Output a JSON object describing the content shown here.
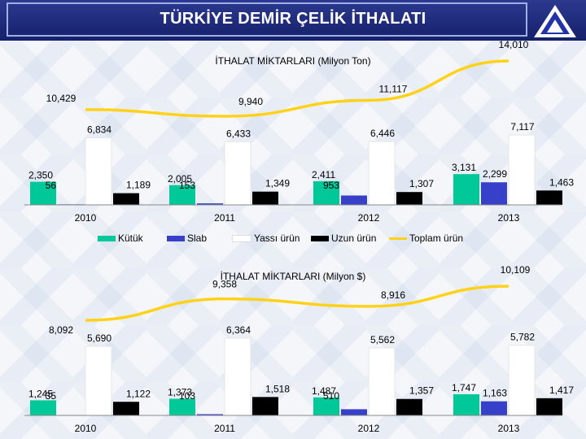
{
  "header": {
    "title": "TÜRKİYE DEMİR ÇELİK İTHALATI",
    "logo_icon": "triangle-a-logo-icon"
  },
  "colors": {
    "Kütük": "#00c898",
    "Slab": "#3640c8",
    "Yassı ürün": "#ffffff",
    "Uzun ürün": "#000000",
    "Toplam ürün": "#ffd21a"
  },
  "legend": [
    "Kütük",
    "Slab",
    "Yassı ürün",
    "Uzun ürün",
    "Toplam ürün"
  ],
  "chart_data": [
    {
      "type": "bar",
      "title": "İTHALAT MİKTARLARI (Milyon Ton)",
      "categories": [
        "2010",
        "2011",
        "2012",
        "2013"
      ],
      "series": [
        {
          "name": "Kütük",
          "values": [
            2350,
            2005,
            2411,
            3131
          ],
          "labels": [
            "2,350",
            "2,005",
            "2,411",
            "3,131"
          ]
        },
        {
          "name": "Slab",
          "values": [
            56,
            153,
            953,
            2299
          ],
          "labels": [
            "56",
            "153",
            "953",
            "2,299"
          ]
        },
        {
          "name": "Yassı ürün",
          "values": [
            6834,
            6433,
            6446,
            7117
          ],
          "labels": [
            "6,834",
            "6,433",
            "6,446",
            "7,117"
          ]
        },
        {
          "name": "Uzun ürün",
          "values": [
            1189,
            1349,
            1307,
            1463
          ],
          "labels": [
            "1,189",
            "1,349",
            "1,307",
            "1,463"
          ]
        }
      ],
      "line": {
        "name": "Toplam ürün",
        "values": [
          10429,
          9940,
          11117,
          14010
        ],
        "labels": [
          "10,429",
          "9,940",
          "11,117",
          "14,010"
        ]
      }
    },
    {
      "type": "bar",
      "title": "İTHALAT MİKTARLARI (Milyon $)",
      "categories": [
        "2010",
        "2011",
        "2012",
        "2013"
      ],
      "series": [
        {
          "name": "Kütük",
          "values": [
            1245,
            1373,
            1487,
            1747
          ],
          "labels": [
            "1,245",
            "1,373",
            "1,487",
            "1,747"
          ]
        },
        {
          "name": "Slab",
          "values": [
            35,
            103,
            510,
            1163
          ],
          "labels": [
            "35",
            "103",
            "510",
            "1,163"
          ]
        },
        {
          "name": "Yassı ürün",
          "values": [
            5690,
            6364,
            5562,
            5782
          ],
          "labels": [
            "5,690",
            "6,364",
            "5,562",
            "5,782"
          ]
        },
        {
          "name": "Uzun ürün",
          "values": [
            1122,
            1518,
            1357,
            1417
          ],
          "labels": [
            "1,122",
            "1,518",
            "1,357",
            "1,417"
          ]
        }
      ],
      "line": {
        "values": [
          8092,
          9358,
          8916,
          10109
        ],
        "labels": [
          "8,092",
          "9,358",
          "8,916",
          "10,109"
        ]
      }
    }
  ]
}
